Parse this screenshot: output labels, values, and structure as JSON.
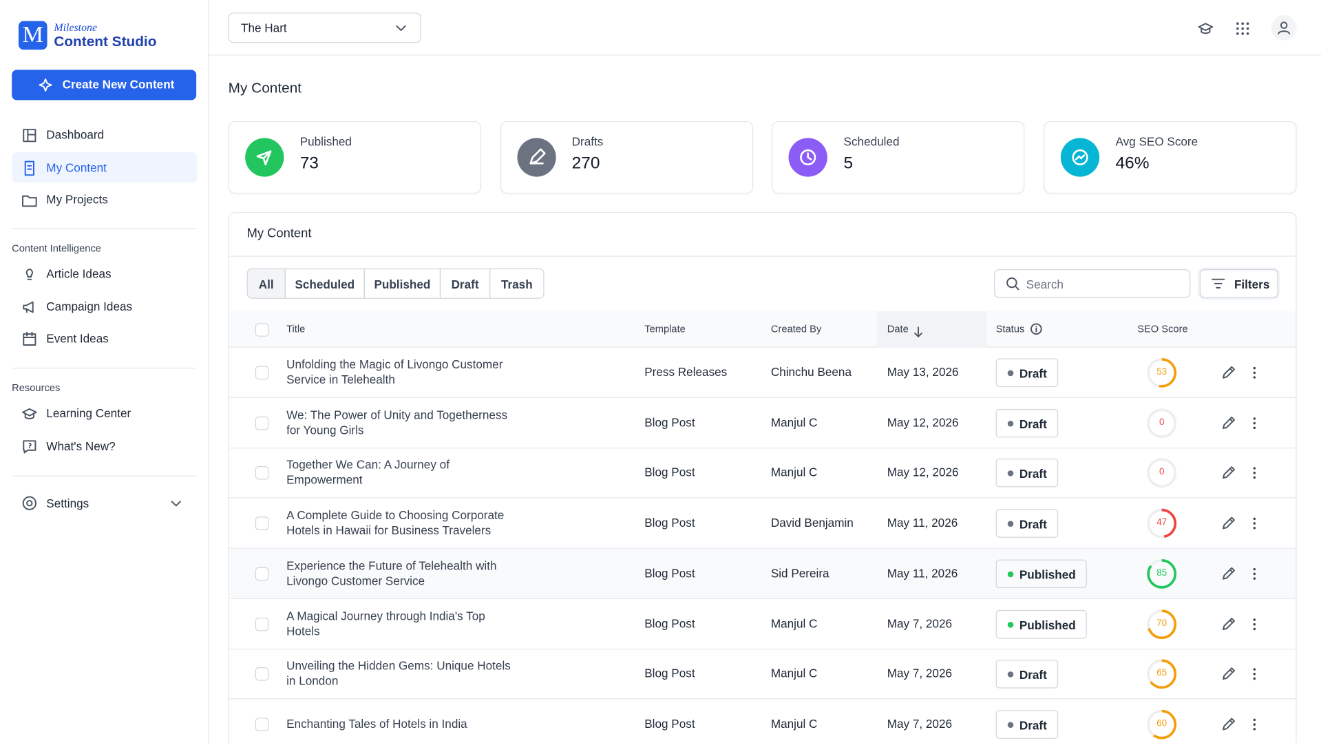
{
  "brand": {
    "top": "Milestone",
    "name": "Content Studio"
  },
  "create_button": "Create New Content",
  "nav": [
    "Dashboard",
    "My Content",
    "My Projects"
  ],
  "sections": [
    {
      "title": "Content Intelligence",
      "items": [
        "Article Ideas",
        "Campaign Ideas",
        "Event Ideas"
      ]
    },
    {
      "title": "Resources",
      "items": [
        "Learning Center",
        "What's New?"
      ]
    }
  ],
  "settings": "Settings",
  "property": "The Hart",
  "page_title": "My Content",
  "stats": [
    {
      "label": "Published",
      "value": "73"
    },
    {
      "label": "Drafts",
      "value": "270"
    },
    {
      "label": "Scheduled",
      "value": "5"
    },
    {
      "label": "Avg SEO Score",
      "value": "46%"
    }
  ],
  "panel_title": "My Content",
  "tabs": [
    "All",
    "Scheduled",
    "Published",
    "Draft",
    "Trash"
  ],
  "search_placeholder": "Search",
  "filters": "Filters",
  "columns": [
    "Title",
    "Template",
    "Created By",
    "Date",
    "Status",
    "SEO Score"
  ],
  "rows": [
    {
      "title": "Unfolding the Magic of Livongo Customer Service in Telehealth",
      "template": "Press Releases",
      "created_by": "Chinchu Beena",
      "date": "May 13, 2026",
      "status": "Draft",
      "seo": 53
    },
    {
      "title": "We: The Power of Unity and Togetherness for Young Girls",
      "template": "Blog Post",
      "created_by": "Manjul C",
      "date": "May 12, 2026",
      "status": "Draft",
      "seo": 0
    },
    {
      "title": "Together We Can: A Journey of Empowerment",
      "template": "Blog Post",
      "created_by": "Manjul C",
      "date": "May 12, 2026",
      "status": "Draft",
      "seo": 0
    },
    {
      "title": "A Complete Guide to Choosing Corporate Hotels in Hawaii for Business Travelers",
      "template": "Blog Post",
      "created_by": "David Benjamin",
      "date": "May 11, 2026",
      "status": "Draft",
      "seo": 47
    },
    {
      "title": "Experience the Future of Telehealth with Livongo Customer Service",
      "template": "Blog Post",
      "created_by": "Sid Pereira",
      "date": "May 11, 2026",
      "status": "Published",
      "seo": 85
    },
    {
      "title": "A Magical Journey through India's Top Hotels",
      "template": "Blog Post",
      "created_by": "Manjul C",
      "date": "May 7, 2026",
      "status": "Published",
      "seo": 70
    },
    {
      "title": "Unveiling the Hidden Gems: Unique Hotels in London",
      "template": "Blog Post",
      "created_by": "Manjul C",
      "date": "May 7, 2026",
      "status": "Draft",
      "seo": 65
    },
    {
      "title": "Enchanting Tales of Hotels in India",
      "template": "Blog Post",
      "created_by": "Manjul C",
      "date": "May 7, 2026",
      "status": "Draft",
      "seo": 60
    }
  ]
}
